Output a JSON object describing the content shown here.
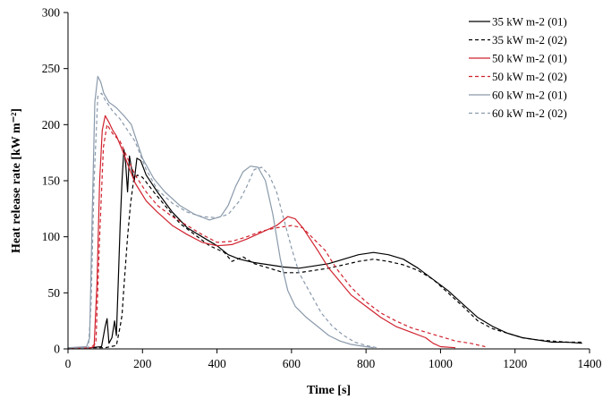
{
  "chart_data": {
    "type": "line",
    "title": "",
    "xlabel": "Time [s]",
    "ylabel": "Heat release rate [kW m⁻²]",
    "xlim": [
      0,
      1400
    ],
    "ylim": [
      0,
      300
    ],
    "xticks": [
      0,
      200,
      400,
      600,
      800,
      1000,
      1200,
      1400
    ],
    "yticks": [
      0,
      50,
      100,
      150,
      200,
      250,
      300
    ],
    "xtick_labels": [
      "0",
      "200",
      "400",
      "600",
      "800",
      "1000",
      "1200",
      "1400"
    ],
    "ytick_labels": [
      "0",
      "50",
      "100",
      "150",
      "200",
      "250",
      "300"
    ],
    "grid": false,
    "legend_position": "top-right",
    "series": [
      {
        "name": "35 kW m-2 (01)",
        "color": "#000000",
        "dash": "solid",
        "points": [
          [
            0,
            0
          ],
          [
            60,
            1
          ],
          [
            90,
            2
          ],
          [
            100,
            20
          ],
          [
            105,
            27
          ],
          [
            110,
            5
          ],
          [
            118,
            10
          ],
          [
            125,
            25
          ],
          [
            130,
            12
          ],
          [
            135,
            60
          ],
          [
            140,
            110
          ],
          [
            145,
            150
          ],
          [
            150,
            178
          ],
          [
            155,
            165
          ],
          [
            160,
            140
          ],
          [
            165,
            172
          ],
          [
            170,
            162
          ],
          [
            178,
            150
          ],
          [
            185,
            170
          ],
          [
            195,
            168
          ],
          [
            210,
            155
          ],
          [
            240,
            140
          ],
          [
            280,
            122
          ],
          [
            320,
            108
          ],
          [
            360,
            100
          ],
          [
            400,
            92
          ],
          [
            430,
            84
          ],
          [
            460,
            80
          ],
          [
            500,
            77
          ],
          [
            540,
            75
          ],
          [
            580,
            73
          ],
          [
            620,
            72
          ],
          [
            660,
            74
          ],
          [
            700,
            76
          ],
          [
            740,
            80
          ],
          [
            780,
            84
          ],
          [
            820,
            86
          ],
          [
            860,
            84
          ],
          [
            900,
            80
          ],
          [
            940,
            72
          ],
          [
            980,
            62
          ],
          [
            1020,
            52
          ],
          [
            1060,
            40
          ],
          [
            1100,
            28
          ],
          [
            1140,
            20
          ],
          [
            1180,
            14
          ],
          [
            1220,
            10
          ],
          [
            1260,
            8
          ],
          [
            1300,
            6
          ],
          [
            1340,
            6
          ],
          [
            1380,
            5
          ]
        ]
      },
      {
        "name": "35 kW m-2 (02)",
        "color": "#000000",
        "dash": "dashed",
        "points": [
          [
            0,
            1
          ],
          [
            100,
            1
          ],
          [
            130,
            3
          ],
          [
            140,
            20
          ],
          [
            145,
            30
          ],
          [
            150,
            55
          ],
          [
            160,
            100
          ],
          [
            168,
            130
          ],
          [
            176,
            150
          ],
          [
            186,
            155
          ],
          [
            200,
            153
          ],
          [
            230,
            140
          ],
          [
            260,
            128
          ],
          [
            300,
            112
          ],
          [
            340,
            102
          ],
          [
            380,
            92
          ],
          [
            420,
            86
          ],
          [
            440,
            78
          ],
          [
            470,
            82
          ],
          [
            500,
            76
          ],
          [
            540,
            72
          ],
          [
            580,
            68
          ],
          [
            620,
            68
          ],
          [
            660,
            70
          ],
          [
            700,
            72
          ],
          [
            740,
            75
          ],
          [
            780,
            78
          ],
          [
            820,
            80
          ],
          [
            860,
            78
          ],
          [
            900,
            75
          ],
          [
            940,
            70
          ],
          [
            980,
            62
          ],
          [
            1020,
            50
          ],
          [
            1060,
            38
          ],
          [
            1100,
            25
          ],
          [
            1140,
            18
          ],
          [
            1180,
            14
          ],
          [
            1220,
            10
          ],
          [
            1260,
            8
          ],
          [
            1300,
            7
          ],
          [
            1340,
            6
          ],
          [
            1380,
            6
          ]
        ]
      },
      {
        "name": "50 kW m-2 (01)",
        "color": "#d0222e",
        "dash": "solid",
        "points": [
          [
            0,
            0
          ],
          [
            60,
            1
          ],
          [
            70,
            2
          ],
          [
            78,
            60
          ],
          [
            85,
            150
          ],
          [
            92,
            195
          ],
          [
            100,
            208
          ],
          [
            110,
            202
          ],
          [
            120,
            195
          ],
          [
            130,
            190
          ],
          [
            145,
            178
          ],
          [
            160,
            165
          ],
          [
            180,
            148
          ],
          [
            210,
            132
          ],
          [
            240,
            122
          ],
          [
            280,
            110
          ],
          [
            320,
            102
          ],
          [
            360,
            95
          ],
          [
            400,
            92
          ],
          [
            440,
            93
          ],
          [
            480,
            98
          ],
          [
            520,
            104
          ],
          [
            560,
            110
          ],
          [
            590,
            118
          ],
          [
            610,
            116
          ],
          [
            630,
            108
          ],
          [
            650,
            98
          ],
          [
            670,
            88
          ],
          [
            700,
            72
          ],
          [
            730,
            60
          ],
          [
            760,
            48
          ],
          [
            800,
            38
          ],
          [
            840,
            28
          ],
          [
            880,
            20
          ],
          [
            920,
            15
          ],
          [
            960,
            10
          ],
          [
            980,
            5
          ],
          [
            1000,
            2
          ],
          [
            1040,
            1
          ]
        ]
      },
      {
        "name": "50 kW m-2 (02)",
        "color": "#d0222e",
        "dash": "dashed",
        "points": [
          [
            0,
            1
          ],
          [
            60,
            1
          ],
          [
            75,
            5
          ],
          [
            85,
            100
          ],
          [
            95,
            180
          ],
          [
            105,
            200
          ],
          [
            120,
            192
          ],
          [
            140,
            185
          ],
          [
            160,
            170
          ],
          [
            180,
            155
          ],
          [
            210,
            140
          ],
          [
            240,
            128
          ],
          [
            280,
            118
          ],
          [
            320,
            110
          ],
          [
            360,
            102
          ],
          [
            400,
            95
          ],
          [
            440,
            96
          ],
          [
            480,
            100
          ],
          [
            520,
            105
          ],
          [
            560,
            108
          ],
          [
            600,
            110
          ],
          [
            630,
            108
          ],
          [
            660,
            98
          ],
          [
            690,
            88
          ],
          [
            720,
            72
          ],
          [
            760,
            55
          ],
          [
            800,
            42
          ],
          [
            840,
            32
          ],
          [
            880,
            25
          ],
          [
            920,
            19
          ],
          [
            960,
            15
          ],
          [
            1000,
            11
          ],
          [
            1040,
            7
          ],
          [
            1080,
            5
          ],
          [
            1120,
            2
          ]
        ]
      },
      {
        "name": "60 kW m-2 (01)",
        "color": "#8a9aab",
        "dash": "solid",
        "points": [
          [
            0,
            1
          ],
          [
            50,
            2
          ],
          [
            58,
            10
          ],
          [
            65,
            120
          ],
          [
            72,
            220
          ],
          [
            80,
            243
          ],
          [
            88,
            238
          ],
          [
            96,
            228
          ],
          [
            110,
            220
          ],
          [
            130,
            215
          ],
          [
            150,
            208
          ],
          [
            170,
            200
          ],
          [
            200,
            170
          ],
          [
            230,
            152
          ],
          [
            260,
            140
          ],
          [
            300,
            128
          ],
          [
            340,
            120
          ],
          [
            380,
            115
          ],
          [
            410,
            118
          ],
          [
            430,
            128
          ],
          [
            450,
            145
          ],
          [
            470,
            158
          ],
          [
            490,
            163
          ],
          [
            510,
            162
          ],
          [
            530,
            150
          ],
          [
            550,
            120
          ],
          [
            570,
            80
          ],
          [
            590,
            52
          ],
          [
            610,
            38
          ],
          [
            640,
            28
          ],
          [
            670,
            20
          ],
          [
            700,
            12
          ],
          [
            730,
            7
          ],
          [
            760,
            4
          ],
          [
            800,
            2
          ],
          [
            820,
            1
          ]
        ]
      },
      {
        "name": "60 kW m-2 (02)",
        "color": "#8a9aab",
        "dash": "dashed",
        "points": [
          [
            0,
            0
          ],
          [
            55,
            1
          ],
          [
            62,
            40
          ],
          [
            70,
            150
          ],
          [
            80,
            225
          ],
          [
            90,
            228
          ],
          [
            100,
            222
          ],
          [
            120,
            212
          ],
          [
            140,
            205
          ],
          [
            160,
            195
          ],
          [
            180,
            185
          ],
          [
            210,
            160
          ],
          [
            240,
            142
          ],
          [
            280,
            130
          ],
          [
            320,
            122
          ],
          [
            360,
            118
          ],
          [
            400,
            117
          ],
          [
            430,
            120
          ],
          [
            460,
            132
          ],
          [
            480,
            145
          ],
          [
            500,
            160
          ],
          [
            520,
            162
          ],
          [
            540,
            155
          ],
          [
            560,
            140
          ],
          [
            580,
            115
          ],
          [
            600,
            90
          ],
          [
            620,
            68
          ],
          [
            650,
            50
          ],
          [
            680,
            32
          ],
          [
            710,
            20
          ],
          [
            740,
            12
          ],
          [
            770,
            6
          ],
          [
            800,
            3
          ],
          [
            830,
            1
          ]
        ]
      }
    ]
  }
}
